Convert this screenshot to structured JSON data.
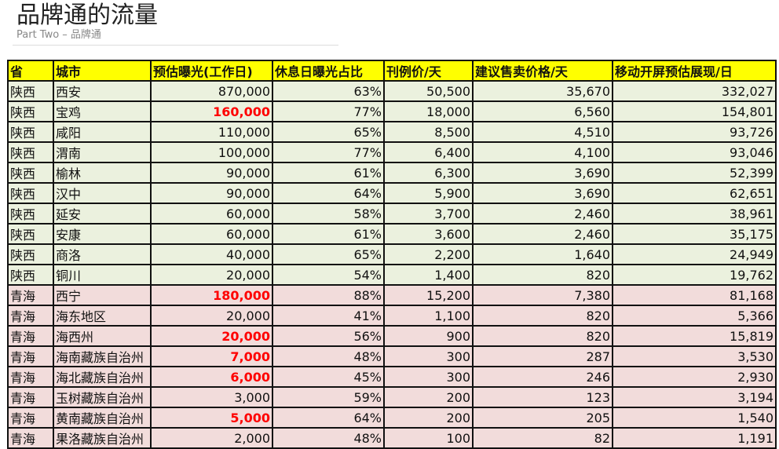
{
  "header": {
    "title": "品牌通的流量",
    "subtitle": "Part Two – 品牌通"
  },
  "table": {
    "columns": [
      "省",
      "城市",
      "预估曝光(工作日)",
      "休息日曝光占比",
      "刊例价/天",
      "建议售卖价格/天",
      "移动开屏预估展现/日"
    ],
    "highlight_color": "#ff0000",
    "rows": [
      {
        "province": "陕西",
        "city": "西安",
        "exposure": "870,000",
        "ratio": "63%",
        "price": "50,500",
        "suggested": "35,670",
        "mobile": "332,027",
        "highlight": false
      },
      {
        "province": "陕西",
        "city": "宝鸡",
        "exposure": "160,000",
        "ratio": "77%",
        "price": "18,000",
        "suggested": "6,560",
        "mobile": "154,801",
        "highlight": true
      },
      {
        "province": "陕西",
        "city": "咸阳",
        "exposure": "110,000",
        "ratio": "65%",
        "price": "8,500",
        "suggested": "4,510",
        "mobile": "93,726",
        "highlight": false
      },
      {
        "province": "陕西",
        "city": "渭南",
        "exposure": "100,000",
        "ratio": "77%",
        "price": "6,400",
        "suggested": "4,100",
        "mobile": "93,046",
        "highlight": false
      },
      {
        "province": "陕西",
        "city": "榆林",
        "exposure": "90,000",
        "ratio": "61%",
        "price": "6,300",
        "suggested": "3,690",
        "mobile": "52,399",
        "highlight": false
      },
      {
        "province": "陕西",
        "city": "汉中",
        "exposure": "90,000",
        "ratio": "64%",
        "price": "5,900",
        "suggested": "3,690",
        "mobile": "62,651",
        "highlight": false
      },
      {
        "province": "陕西",
        "city": "延安",
        "exposure": "60,000",
        "ratio": "58%",
        "price": "3,700",
        "suggested": "2,460",
        "mobile": "38,961",
        "highlight": false
      },
      {
        "province": "陕西",
        "city": "安康",
        "exposure": "60,000",
        "ratio": "61%",
        "price": "3,600",
        "suggested": "2,460",
        "mobile": "35,175",
        "highlight": false
      },
      {
        "province": "陕西",
        "city": "商洛",
        "exposure": "40,000",
        "ratio": "65%",
        "price": "2,200",
        "suggested": "1,640",
        "mobile": "24,949",
        "highlight": false
      },
      {
        "province": "陕西",
        "city": "铜川",
        "exposure": "20,000",
        "ratio": "54%",
        "price": "1,400",
        "suggested": "820",
        "mobile": "19,762",
        "highlight": false
      },
      {
        "province": "青海",
        "city": "西宁",
        "exposure": "180,000",
        "ratio": "88%",
        "price": "15,200",
        "suggested": "7,380",
        "mobile": "81,168",
        "highlight": true
      },
      {
        "province": "青海",
        "city": "海东地区",
        "exposure": "20,000",
        "ratio": "41%",
        "price": "1,100",
        "suggested": "820",
        "mobile": "5,366",
        "highlight": false
      },
      {
        "province": "青海",
        "city": "海西州",
        "exposure": "20,000",
        "ratio": "56%",
        "price": "900",
        "suggested": "820",
        "mobile": "15,819",
        "highlight": true
      },
      {
        "province": "青海",
        "city": "海南藏族自治州",
        "exposure": "7,000",
        "ratio": "48%",
        "price": "300",
        "suggested": "287",
        "mobile": "3,530",
        "highlight": true
      },
      {
        "province": "青海",
        "city": "海北藏族自治州",
        "exposure": "6,000",
        "ratio": "45%",
        "price": "300",
        "suggested": "246",
        "mobile": "2,930",
        "highlight": true
      },
      {
        "province": "青海",
        "city": "玉树藏族自治州",
        "exposure": "3,000",
        "ratio": "59%",
        "price": "200",
        "suggested": "123",
        "mobile": "3,194",
        "highlight": false
      },
      {
        "province": "青海",
        "city": "黄南藏族自治州",
        "exposure": "5,000",
        "ratio": "64%",
        "price": "200",
        "suggested": "205",
        "mobile": "1,540",
        "highlight": true
      },
      {
        "province": "青海",
        "city": "果洛藏族自治州",
        "exposure": "2,000",
        "ratio": "48%",
        "price": "100",
        "suggested": "82",
        "mobile": "1,191",
        "highlight": false
      }
    ]
  }
}
